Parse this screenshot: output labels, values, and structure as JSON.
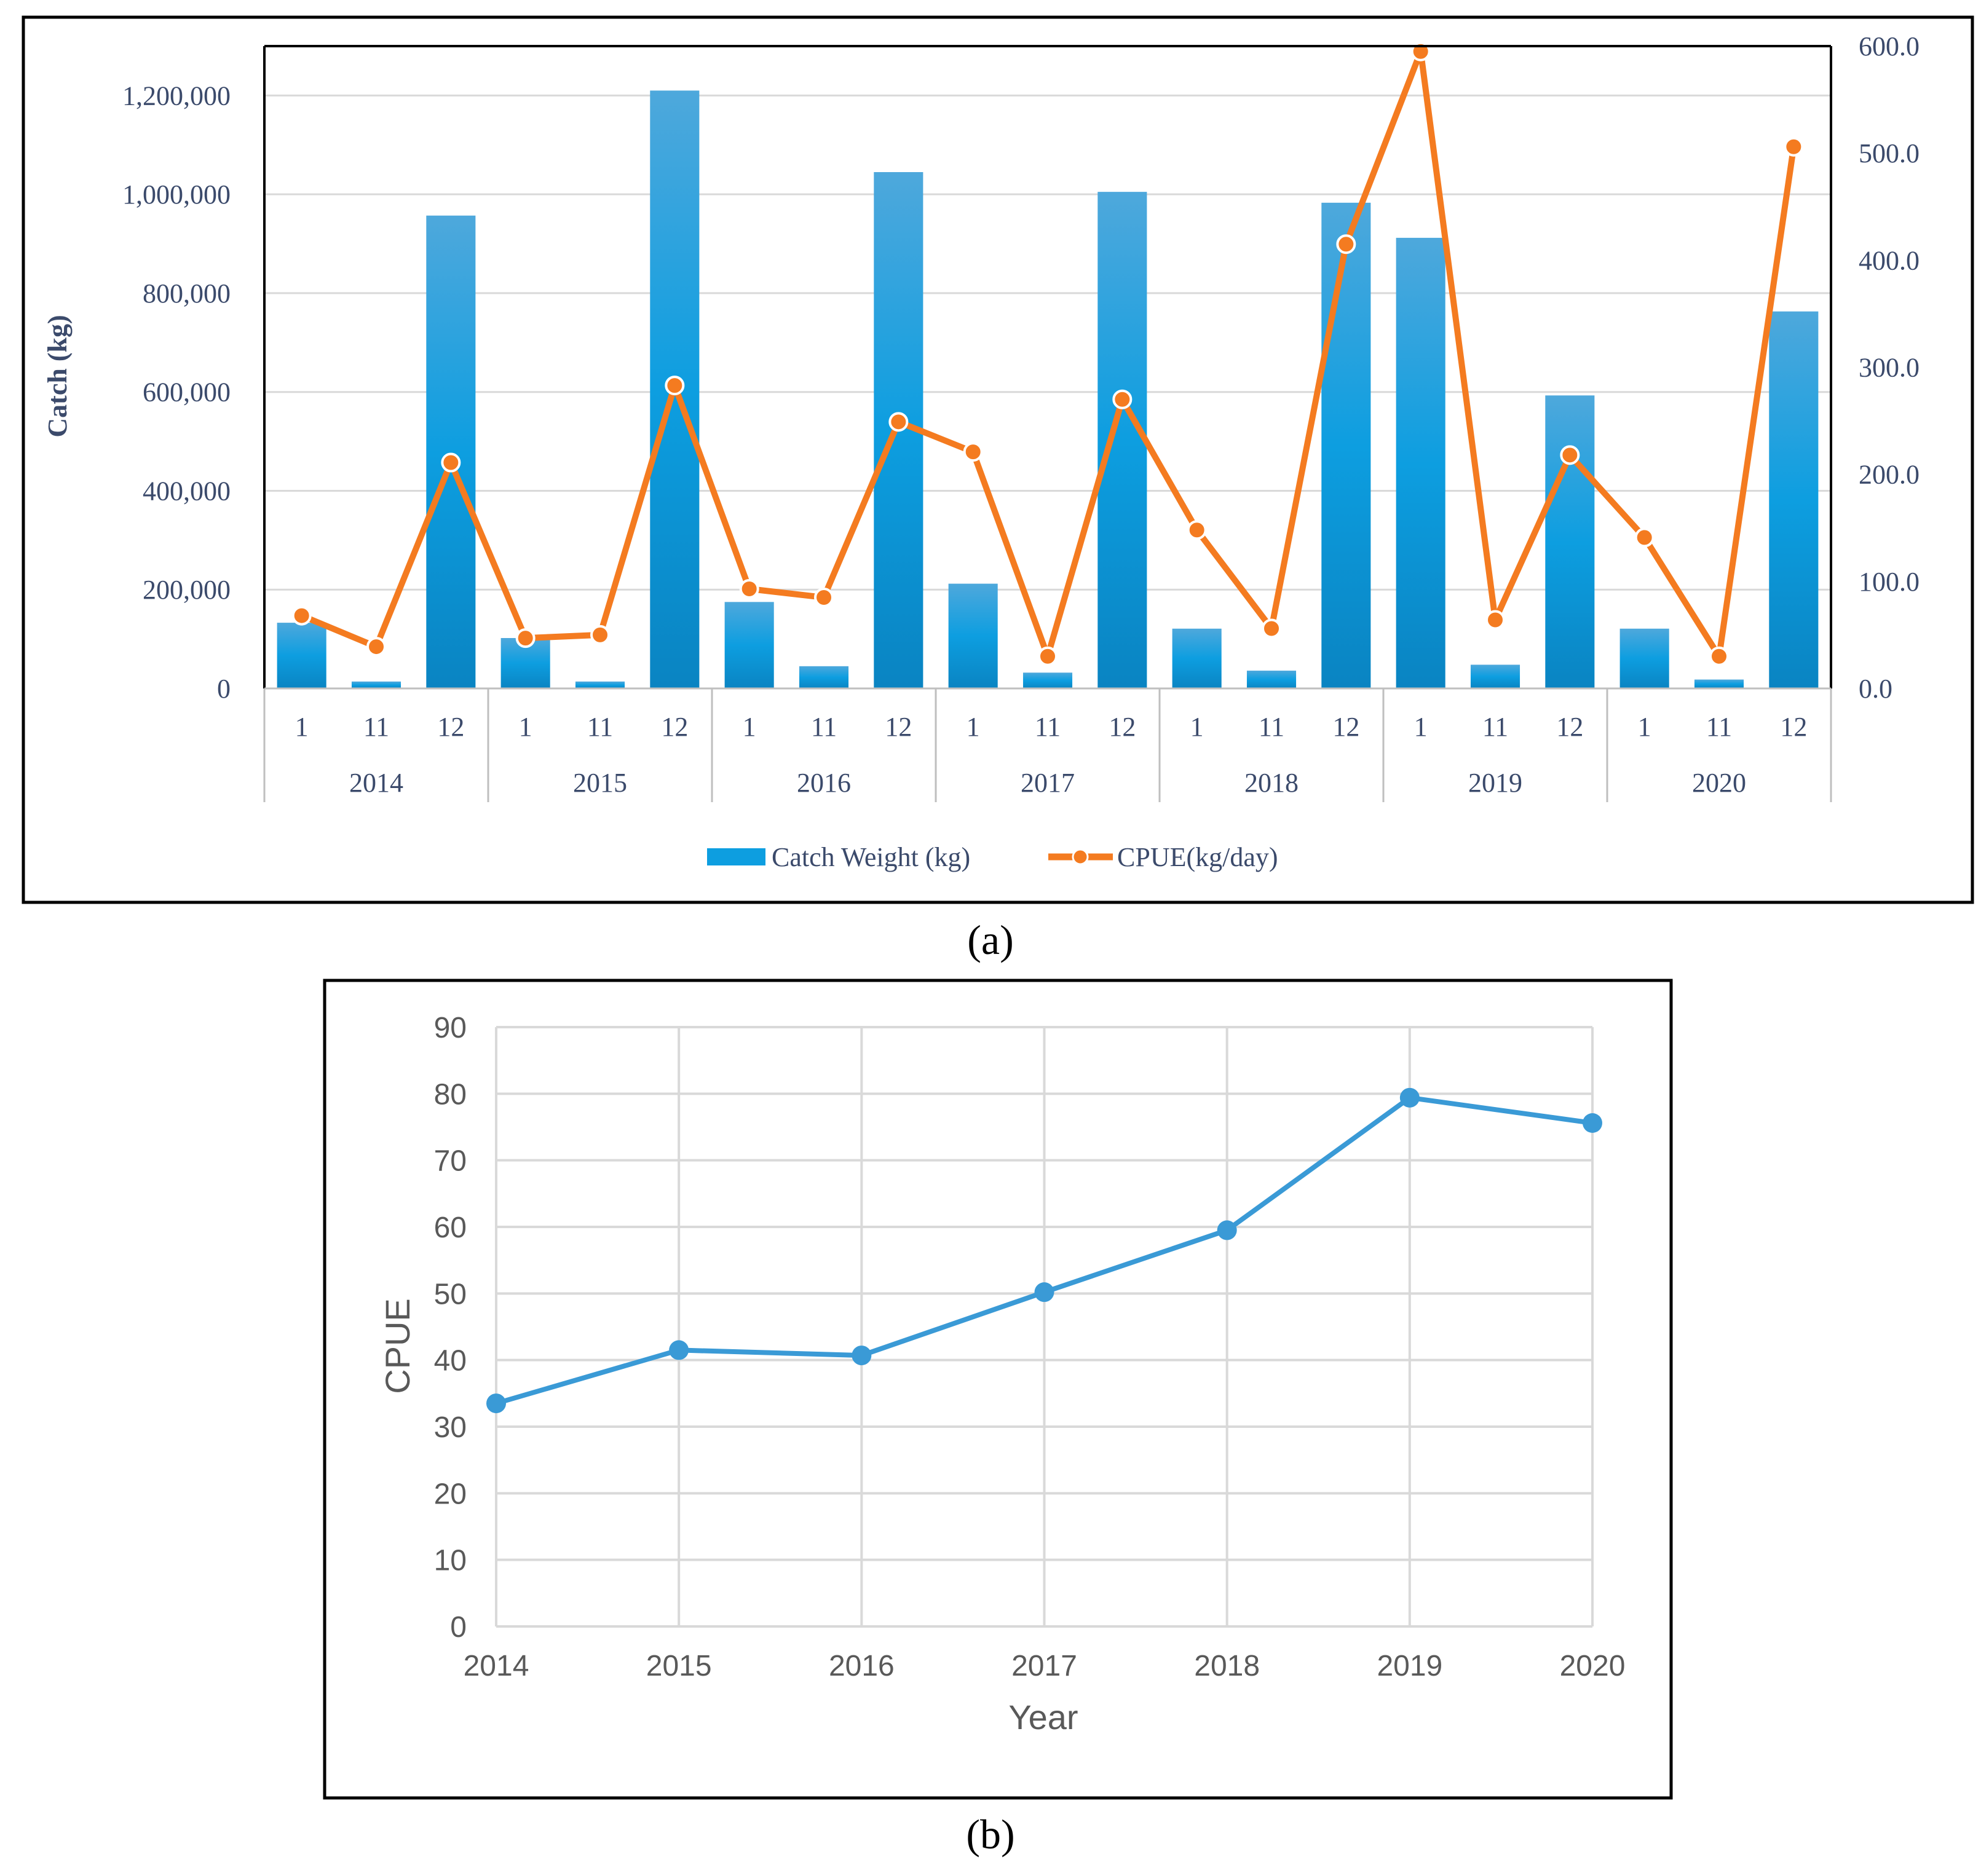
{
  "colors": {
    "bar_top": "#4ea8dc",
    "bar_mid": "#0d9ee0",
    "bar_bottom": "#0a84c2",
    "cpue_line": "#f47b20",
    "line_b": "#3a9ad6",
    "grid": "#d9d9d9",
    "axis_text_a": "#3b4a6b",
    "axis_text_b": "#595959",
    "frame": "#000000"
  },
  "chart_data": [
    {
      "panel_label": "(a)",
      "type": "bar",
      "title": "",
      "ylabel": "Catch (kg)",
      "y2label": "",
      "ylim": [
        0,
        1300000
      ],
      "y2lim": [
        0,
        600
      ],
      "yticks": [
        "0",
        "200,000",
        "400,000",
        "600,000",
        "800,000",
        "1,000,000",
        "1,200,000"
      ],
      "yticks_values": [
        0,
        200000,
        400000,
        600000,
        800000,
        1000000,
        1200000
      ],
      "y2ticks": [
        "0.0",
        "100.0",
        "200.0",
        "300.0",
        "400.0",
        "500.0",
        "600.0"
      ],
      "y2ticks_values": [
        0,
        100,
        200,
        300,
        400,
        500,
        600
      ],
      "years": [
        "2014",
        "2015",
        "2016",
        "2017",
        "2018",
        "2019",
        "2020"
      ],
      "months": [
        "1",
        "11",
        "12"
      ],
      "categories": [
        "2014-1",
        "2014-11",
        "2014-12",
        "2015-1",
        "2015-11",
        "2015-12",
        "2016-1",
        "2016-11",
        "2016-12",
        "2017-1",
        "2017-11",
        "2017-12",
        "2018-1",
        "2018-11",
        "2018-12",
        "2019-1",
        "2019-11",
        "2019-12",
        "2020-1",
        "2020-11",
        "2020-12"
      ],
      "series": [
        {
          "name": "Catch Weight (kg)",
          "kind": "bar",
          "axis": "left",
          "values": [
            133000,
            14000,
            957000,
            102000,
            14000,
            1210000,
            175000,
            45000,
            1045000,
            212000,
            32000,
            1005000,
            121000,
            36000,
            983000,
            912000,
            48000,
            593000,
            121000,
            18000,
            763000
          ]
        },
        {
          "name": "CPUE(kg/day)",
          "kind": "line",
          "axis": "right",
          "values": [
            68,
            39,
            211,
            47,
            50,
            283,
            93,
            85,
            249,
            221,
            30,
            270,
            148,
            56,
            415,
            595,
            64,
            218,
            141,
            30,
            506
          ]
        }
      ],
      "legend": [
        "Catch Weight (kg)",
        "CPUE(kg/day)"
      ],
      "legend_position": "bottom"
    },
    {
      "panel_label": "(b)",
      "type": "line",
      "title": "",
      "xlabel": "Year",
      "ylabel": "CPUE",
      "x": [
        2014,
        2015,
        2016,
        2017,
        2018,
        2019,
        2020
      ],
      "xticks": [
        "2014",
        "2015",
        "2016",
        "2017",
        "2018",
        "2019",
        "2020"
      ],
      "ylim": [
        0,
        90
      ],
      "yticks": [
        "0",
        "10",
        "20",
        "30",
        "40",
        "50",
        "60",
        "70",
        "80",
        "90"
      ],
      "series": [
        {
          "name": "CPUE",
          "values": [
            33.5,
            41.5,
            40.7,
            50.2,
            59.5,
            79.4,
            75.6
          ]
        }
      ],
      "grid": true
    }
  ]
}
